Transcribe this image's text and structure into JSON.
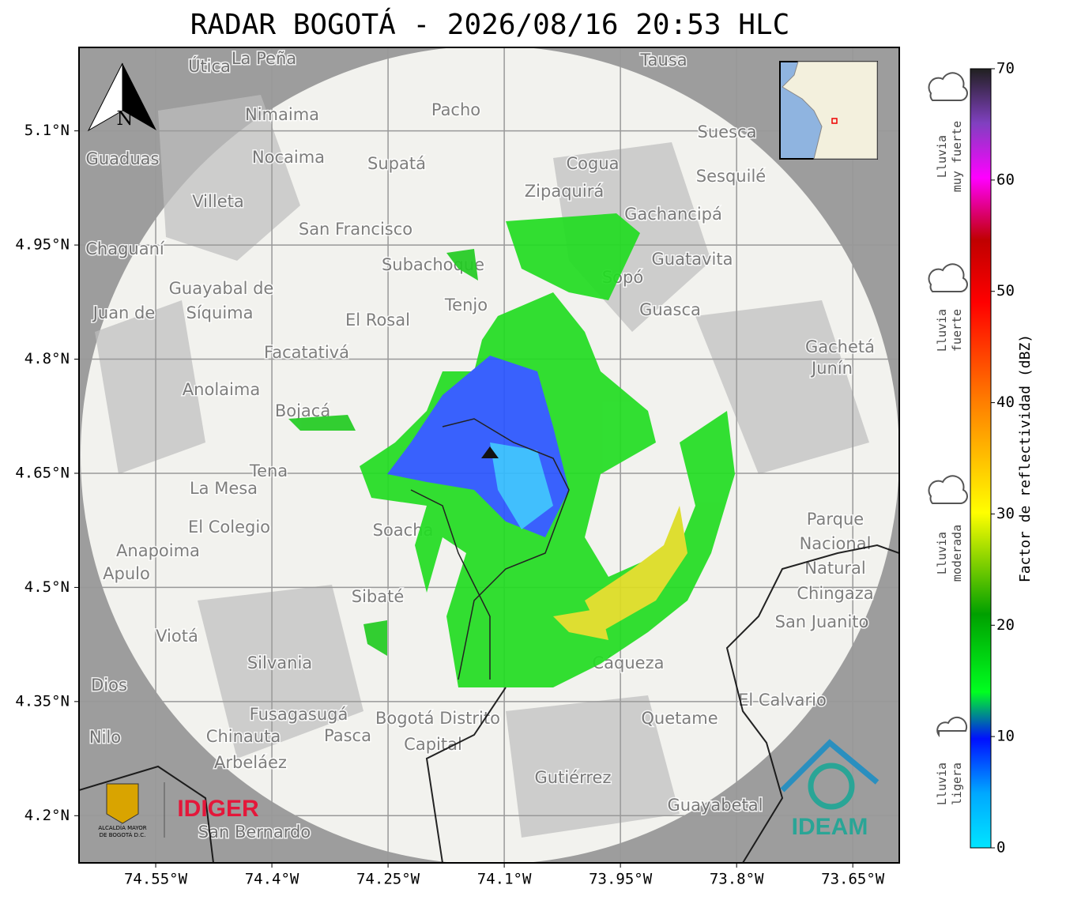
{
  "title": "RADAR BOGOTÁ - 2026/08/16 20:53 HLC",
  "map": {
    "xlim": [
      -74.649,
      -73.59
    ],
    "ylim": [
      4.138,
      5.2097
    ],
    "xticks": [
      {
        "value": -74.55,
        "label": "74.55°W"
      },
      {
        "value": -74.4,
        "label": "74.4°W"
      },
      {
        "value": -74.25,
        "label": "74.25°W"
      },
      {
        "value": -74.1,
        "label": "74.1°W"
      },
      {
        "value": -73.95,
        "label": "73.95°W"
      },
      {
        "value": -73.8,
        "label": "73.8°W"
      },
      {
        "value": -73.65,
        "label": "73.65°W"
      }
    ],
    "yticks": [
      {
        "value": 5.1,
        "label": "5.1°N"
      },
      {
        "value": 4.95,
        "label": "4.95°N"
      },
      {
        "value": 4.8,
        "label": "4.8°N"
      },
      {
        "value": 4.65,
        "label": "4.65°N"
      },
      {
        "value": 4.5,
        "label": "4.5°N"
      },
      {
        "value": 4.35,
        "label": "4.35°N"
      },
      {
        "value": 4.2,
        "label": "4.2°N"
      }
    ],
    "places": [
      "La Peña",
      "Útica",
      "Tausa",
      "Pacho",
      "Nimaima",
      "Suesca",
      "Guaduas",
      "Nocaima",
      "Supatá",
      "Cogua",
      "Sesquilé",
      "Zipaquirá",
      "Villeta",
      "Gachancipá",
      "San Francisco",
      "Chaguaní",
      "Guatavita",
      "Subachoque",
      "Sopó",
      "Guayabal de",
      "Síquima",
      "Tenjo",
      "Guasca",
      "Juan de",
      "El Rosal",
      "Gachetá",
      "Facatativá",
      "Junín",
      "Anolaima",
      "Bojacá",
      "Tena",
      "La Mesa",
      "El Colegio",
      "Parque",
      "Nacional",
      "Natural",
      "Chingaza",
      "Soacha",
      "Anapoima",
      "Apulo",
      "Sibaté",
      "San Juanito",
      "Viotá",
      "Silvania",
      "Cáqueza",
      "Dios",
      "El Calvario",
      "Fusagasugá",
      "Bogotá Distrito",
      "Capital",
      "Quetame",
      "Nilo",
      "Chinauta",
      "Pasca",
      "Arbeláez",
      "Gutiérrez",
      "Guayabetal",
      "San Bernardo"
    ],
    "north": "N"
  },
  "colorbar": {
    "label": "Factor de reflectividad (dBZ)",
    "lim": [
      0,
      70
    ],
    "ticks": [
      0,
      10,
      20,
      30,
      40,
      50,
      60,
      70
    ]
  },
  "rain_levels": [
    [
      "Lluvia",
      "muy fuerte"
    ],
    [
      "Lluvia",
      "fuerte"
    ],
    [
      "Lluvia",
      "moderada"
    ],
    [
      "Lluvia",
      "ligera"
    ]
  ],
  "logos": {
    "alcaldia": [
      "ALCALDÍA MAYOR",
      "DE BOGOTÁ D.C."
    ],
    "idiger": "IDIGER",
    "ideam": "IDEAM"
  }
}
